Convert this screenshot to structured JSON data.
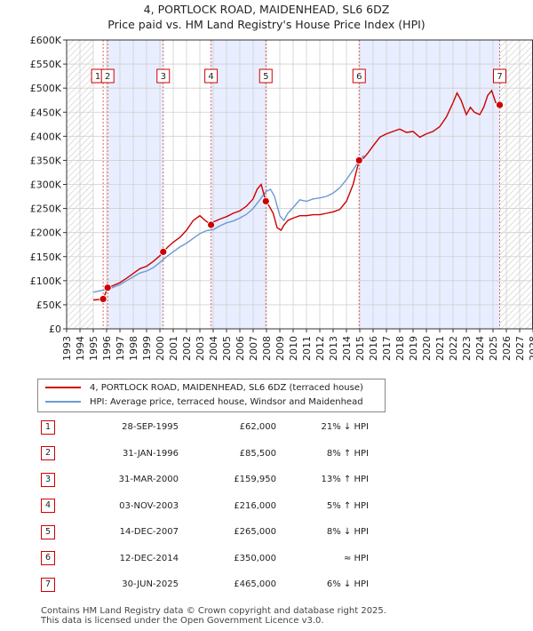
{
  "title": {
    "line1": "4, PORTLOCK ROAD, MAIDENHEAD, SL6 6DZ",
    "line2": "Price paid vs. HM Land Registry's House Price Index (HPI)"
  },
  "colors": {
    "property": "#cc0000",
    "hpi": "#6b9bd2",
    "band": "#e8eeff",
    "grid": "#d0d0d0"
  },
  "legend": {
    "property": "4, PORTLOCK ROAD, MAIDENHEAD, SL6 6DZ (terraced house)",
    "hpi": "HPI: Average price, terraced house, Windsor and Maidenhead"
  },
  "sales": [
    {
      "n": "1",
      "date": "28-SEP-1995",
      "price": "£62,000",
      "hpi": "21% ↓ HPI"
    },
    {
      "n": "2",
      "date": "31-JAN-1996",
      "price": "£85,500",
      "hpi": "8% ↑ HPI"
    },
    {
      "n": "3",
      "date": "31-MAR-2000",
      "price": "£159,950",
      "hpi": "13% ↑ HPI"
    },
    {
      "n": "4",
      "date": "03-NOV-2003",
      "price": "£216,000",
      "hpi": "5% ↑ HPI"
    },
    {
      "n": "5",
      "date": "14-DEC-2007",
      "price": "£265,000",
      "hpi": "8% ↓ HPI"
    },
    {
      "n": "6",
      "date": "12-DEC-2014",
      "price": "£350,000",
      "hpi": "≈ HPI"
    },
    {
      "n": "7",
      "date": "30-JUN-2025",
      "price": "£465,000",
      "hpi": "6% ↓ HPI"
    }
  ],
  "footer": {
    "line1": "Contains HM Land Registry data © Crown copyright and database right 2025.",
    "line2": "This data is licensed under the Open Government Licence v3.0."
  },
  "chart_data": {
    "type": "line",
    "title": "4, PORTLOCK ROAD, MAIDENHEAD, SL6 6DZ — Price paid vs. HM Land Registry's House Price Index (HPI)",
    "xlim": [
      1993,
      2028
    ],
    "ylim": [
      0,
      600000
    ],
    "x_ticks": [
      "1993",
      "1994",
      "1995",
      "1996",
      "1997",
      "1998",
      "1999",
      "2000",
      "2001",
      "2002",
      "2003",
      "2004",
      "2005",
      "2006",
      "2007",
      "2008",
      "2009",
      "2010",
      "2011",
      "2012",
      "2013",
      "2014",
      "2015",
      "2016",
      "2017",
      "2018",
      "2019",
      "2020",
      "2021",
      "2022",
      "2023",
      "2024",
      "2025",
      "2026",
      "2027",
      "2028"
    ],
    "y_ticks": [
      {
        "v": 0,
        "label": "£0"
      },
      {
        "v": 50000,
        "label": "£50K"
      },
      {
        "v": 100000,
        "label": "£100K"
      },
      {
        "v": 150000,
        "label": "£150K"
      },
      {
        "v": 200000,
        "label": "£200K"
      },
      {
        "v": 250000,
        "label": "£250K"
      },
      {
        "v": 300000,
        "label": "£300K"
      },
      {
        "v": 350000,
        "label": "£350K"
      },
      {
        "v": 400000,
        "label": "£400K"
      },
      {
        "v": 450000,
        "label": "£450K"
      },
      {
        "v": 500000,
        "label": "£500K"
      },
      {
        "v": 550000,
        "label": "£550K"
      },
      {
        "v": 600000,
        "label": "£600K"
      }
    ],
    "hatched_until": 1995.0,
    "future_from": 2025.5,
    "bands": [
      [
        1996.08,
        2000.25
      ],
      [
        2003.84,
        2007.95
      ],
      [
        2014.95,
        2025.5
      ]
    ],
    "sale_markers": [
      {
        "n": "1",
        "x": 1995.74,
        "y": 62000
      },
      {
        "n": "2",
        "x": 1996.08,
        "y": 85500
      },
      {
        "n": "3",
        "x": 2000.25,
        "y": 159950
      },
      {
        "n": "4",
        "x": 2003.84,
        "y": 216000
      },
      {
        "n": "5",
        "x": 2007.95,
        "y": 265000
      },
      {
        "n": "6",
        "x": 2014.95,
        "y": 350000
      },
      {
        "n": "7",
        "x": 2025.5,
        "y": 465000
      }
    ],
    "series": [
      {
        "name": "4, PORTLOCK ROAD, MAIDENHEAD, SL6 6DZ (terraced house)",
        "x": [
          1995.0,
          1995.5,
          1995.74,
          1996.08,
          1996.5,
          1997.0,
          1997.5,
          1998.0,
          1998.5,
          1999.0,
          1999.5,
          2000.0,
          2000.25,
          2000.6,
          2001.0,
          2001.5,
          2002.0,
          2002.5,
          2003.0,
          2003.4,
          2003.84,
          2004.0,
          2004.5,
          2005.0,
          2005.5,
          2006.0,
          2006.5,
          2007.0,
          2007.3,
          2007.6,
          2007.95,
          2008.2,
          2008.5,
          2008.8,
          2009.1,
          2009.3,
          2009.6,
          2010.0,
          2010.5,
          2011.0,
          2011.5,
          2012.0,
          2012.5,
          2013.0,
          2013.5,
          2014.0,
          2014.5,
          2014.95,
          2015.3,
          2015.6,
          2016.0,
          2016.5,
          2017.0,
          2017.5,
          2018.0,
          2018.5,
          2019.0,
          2019.5,
          2020.0,
          2020.5,
          2021.0,
          2021.5,
          2022.0,
          2022.3,
          2022.6,
          2023.0,
          2023.3,
          2023.6,
          2024.0,
          2024.3,
          2024.6,
          2024.9,
          2025.2,
          2025.5
        ],
        "y": [
          60000,
          61000,
          62000,
          85500,
          90000,
          96000,
          105000,
          115000,
          125000,
          130000,
          140000,
          152000,
          159950,
          170000,
          180000,
          190000,
          205000,
          225000,
          235000,
          225000,
          216000,
          222000,
          228000,
          233000,
          240000,
          245000,
          255000,
          270000,
          290000,
          300000,
          265000,
          255000,
          240000,
          210000,
          205000,
          215000,
          225000,
          230000,
          235000,
          235000,
          237000,
          237000,
          240000,
          243000,
          248000,
          265000,
          300000,
          350000,
          355000,
          365000,
          380000,
          398000,
          405000,
          410000,
          415000,
          408000,
          410000,
          398000,
          405000,
          410000,
          420000,
          440000,
          470000,
          490000,
          475000,
          445000,
          460000,
          450000,
          445000,
          460000,
          485000,
          495000,
          470000,
          465000
        ]
      },
      {
        "name": "HPI: Average price, terraced house, Windsor and Maidenhead",
        "x": [
          1995.0,
          1995.5,
          1996.0,
          1996.5,
          1997.0,
          1997.5,
          1998.0,
          1998.5,
          1999.0,
          1999.5,
          2000.0,
          2000.5,
          2001.0,
          2001.5,
          2002.0,
          2002.5,
          2003.0,
          2003.5,
          2004.0,
          2004.5,
          2005.0,
          2005.5,
          2006.0,
          2006.5,
          2007.0,
          2007.5,
          2007.95,
          2008.3,
          2008.6,
          2009.0,
          2009.3,
          2009.6,
          2010.0,
          2010.5,
          2011.0,
          2011.5,
          2012.0,
          2012.5,
          2013.0,
          2013.5,
          2014.0,
          2014.5,
          2014.95,
          2015.3
        ],
        "y": [
          76000,
          79000,
          81000,
          86000,
          92000,
          100000,
          108000,
          116000,
          120000,
          127000,
          138000,
          150000,
          160000,
          170000,
          178000,
          188000,
          198000,
          204000,
          206000,
          214000,
          220000,
          224000,
          230000,
          238000,
          250000,
          268000,
          285000,
          290000,
          275000,
          235000,
          225000,
          240000,
          252000,
          268000,
          265000,
          270000,
          272000,
          275000,
          282000,
          293000,
          310000,
          330000,
          350000,
          360000
        ]
      }
    ]
  }
}
